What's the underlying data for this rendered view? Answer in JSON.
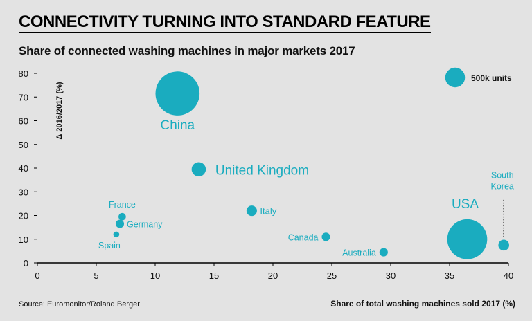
{
  "header": {
    "title": "CONNECTIVITY TURNING INTO STANDARD FEATURE",
    "subtitle": "Share of connected washing machines in major markets 2017"
  },
  "footer": {
    "source": "Source: Euromonitor/Roland Berger"
  },
  "colors": {
    "bubble": "#1aacbf",
    "label": "#1aacbf",
    "axis": "#000000",
    "background": "#e3e3e3"
  },
  "chart_data": {
    "type": "scatter",
    "title": "Share of connected washing machines in major markets 2017",
    "xlabel": "Share of total washing machines sold 2017 (%)",
    "ylabel": "Δ 2016/2017 (%)",
    "xlim": [
      0,
      40
    ],
    "ylim": [
      0,
      80
    ],
    "xticks": [
      0,
      5,
      10,
      15,
      20,
      25,
      30,
      35,
      40
    ],
    "yticks": [
      0,
      10,
      20,
      30,
      40,
      50,
      60,
      70,
      80
    ],
    "points": [
      {
        "name": "China",
        "x": 11.9,
        "y": 71.5,
        "units_k": 2500
      },
      {
        "name": "United Kingdom",
        "x": 13.7,
        "y": 39.5,
        "units_k": 260
      },
      {
        "name": "Italy",
        "x": 18.2,
        "y": 22,
        "units_k": 140
      },
      {
        "name": "France",
        "x": 7.2,
        "y": 19.5,
        "units_k": 70
      },
      {
        "name": "Germany",
        "x": 7,
        "y": 16.5,
        "units_k": 90
      },
      {
        "name": "Spain",
        "x": 6.7,
        "y": 12,
        "units_k": 45
      },
      {
        "name": "Canada",
        "x": 24.5,
        "y": 11,
        "units_k": 90
      },
      {
        "name": "Australia",
        "x": 29.4,
        "y": 4.5,
        "units_k": 90
      },
      {
        "name": "USA",
        "x": 36.5,
        "y": 10,
        "units_k": 2050
      },
      {
        "name": "South Korea",
        "x": 39.6,
        "y": 7.5,
        "units_k": 150
      }
    ],
    "legend": {
      "label": "500k units",
      "units_k": 500,
      "position": "top-right"
    }
  }
}
